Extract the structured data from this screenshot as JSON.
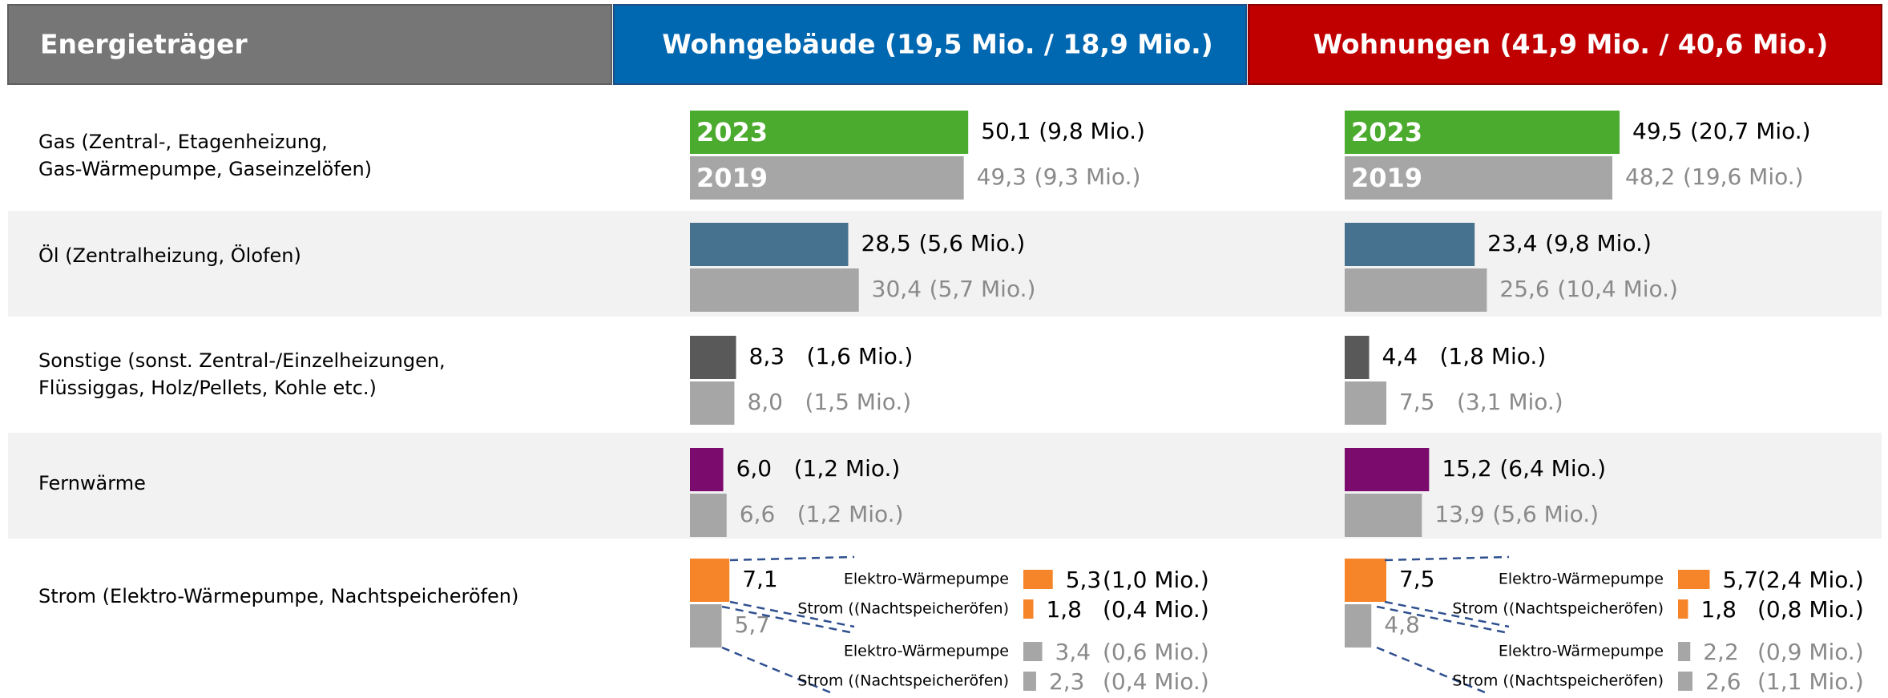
{
  "headers": [
    "Energieträger",
    "Wohngebäude (19,5 Mio. / 18,9 Mio.)",
    "Wohnungen (41,9 Mio. / 40,6 Mio.)"
  ],
  "years": [
    "2023",
    "2019"
  ],
  "rows": [
    {
      "label": [
        "Gas (Zentral-, Etagenheizung,",
        "Gas-Wärmepumpe, Gaseinzelöfen)"
      ],
      "color": "#4aab2e",
      "groups": [
        {
          "values": [
            50.1,
            49.3
          ],
          "value_labels": [
            "50,1",
            "49,3"
          ],
          "counts": [
            "(9,8 Mio.)",
            "(9,3 Mio.)"
          ]
        },
        {
          "values": [
            49.5,
            48.2
          ],
          "value_labels": [
            "49,5",
            "48,2"
          ],
          "counts": [
            "(20,7 Mio.)",
            "(19,6 Mio.)"
          ]
        }
      ]
    },
    {
      "label": [
        "Öl (Zentralheizung, Ölofen)"
      ],
      "color": "#467290",
      "groups": [
        {
          "values": [
            28.5,
            30.4
          ],
          "value_labels": [
            "28,5",
            "30,4"
          ],
          "counts": [
            "(5,6 Mio.)",
            "(5,7 Mio.)"
          ]
        },
        {
          "values": [
            23.4,
            25.6
          ],
          "value_labels": [
            "23,4",
            "25,6"
          ],
          "counts": [
            "(9,8 Mio.)",
            "(10,4 Mio.)"
          ]
        }
      ]
    },
    {
      "label": [
        "Sonstige (sonst. Zentral-/Einzelheizungen,",
        "Flüssiggas, Holz/Pellets, Kohle etc.)"
      ],
      "color": "#595959",
      "groups": [
        {
          "values": [
            8.3,
            8.0
          ],
          "value_labels": [
            "8,3",
            "8,0"
          ],
          "counts": [
            "(1,6 Mio.)",
            "(1,5 Mio.)"
          ]
        },
        {
          "values": [
            4.4,
            7.5
          ],
          "value_labels": [
            "4,4",
            "7,5"
          ],
          "counts": [
            "(1,8 Mio.)",
            "(3,1 Mio.)"
          ]
        }
      ]
    },
    {
      "label": [
        "Fernwärme"
      ],
      "color": "#7b0c6e",
      "groups": [
        {
          "values": [
            6.0,
            6.6
          ],
          "value_labels": [
            "6,0",
            "6,6"
          ],
          "counts": [
            "(1,2 Mio.)",
            "(1,2 Mio.)"
          ]
        },
        {
          "values": [
            15.2,
            13.9
          ],
          "value_labels": [
            "15,2",
            "13,9"
          ],
          "counts": [
            "(6,4 Mio.)",
            "(5,6 Mio.)"
          ]
        }
      ]
    },
    {
      "label": [
        "Strom (Elektro-Wärmepumpe, Nachtspeicheröfen)"
      ],
      "color": "#f6852a",
      "groups": [
        {
          "values": [
            7.1,
            5.7
          ],
          "value_labels": [
            "7,1",
            "5,7"
          ],
          "breakdown": [
            {
              "name": "Elektro-Wärmepumpe",
              "value": 5.3,
              "value_label": "5,3",
              "count": "(1,0 Mio.)"
            },
            {
              "name": "Strom ((Nachtspeicheröfen)",
              "value": 1.8,
              "value_label": "1,8",
              "count": "(0,4 Mio.)"
            },
            {
              "name": "Elektro-Wärmepumpe",
              "value": 3.4,
              "value_label": "3,4",
              "count": "(0,6 Mio.)"
            },
            {
              "name": "Strom ((Nachtspeicheröfen)",
              "value": 2.3,
              "value_label": "2,3",
              "count": "(0,4 Mio.)"
            }
          ]
        },
        {
          "values": [
            7.5,
            4.8
          ],
          "value_labels": [
            "7,5",
            "4,8"
          ],
          "breakdown": [
            {
              "name": "Elektro-Wärmepumpe",
              "value": 5.7,
              "value_label": "5,7",
              "count": "(2,4 Mio.)"
            },
            {
              "name": "Strom ((Nachtspeicheröfen)",
              "value": 1.8,
              "value_label": "1,8",
              "count": "(0,8 Mio.)"
            },
            {
              "name": "Elektro-Wärmepumpe",
              "value": 2.2,
              "value_label": "2,2",
              "count": "(0,9 Mio.)"
            },
            {
              "name": "Strom ((Nachtspeicheröfen)",
              "value": 2.6,
              "value_label": "2,6",
              "count": "(1,1 Mio.)"
            }
          ]
        }
      ]
    }
  ]
}
